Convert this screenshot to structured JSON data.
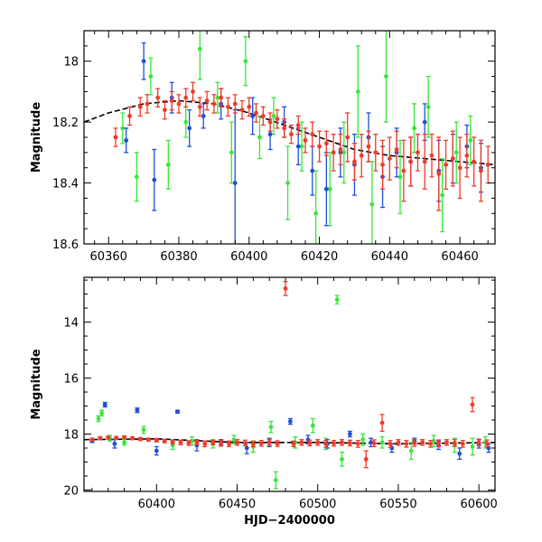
{
  "chart_data": [
    {
      "type": "scatter",
      "title": "",
      "xlabel": "",
      "ylabel": "Magnitude",
      "xlim": [
        60353,
        60470
      ],
      "ylim": [
        18.6,
        17.9
      ],
      "y_inverted": true,
      "xticks": [
        60360,
        60380,
        60400,
        60420,
        60440,
        60460
      ],
      "yticks": [
        18,
        18.2,
        18.4,
        18.6
      ],
      "xtick_labels": [
        "60360",
        "60380",
        "60400",
        "60420",
        "60440",
        "60460"
      ],
      "ytick_labels": [
        "18",
        "18.2",
        "18.4",
        "18.6"
      ],
      "grid": false,
      "colors": {
        "g": "#39e639",
        "b": "#1f4fd8",
        "r": "#ee3b2a",
        "model": "#000000"
      },
      "model_curve": {
        "style": "dashed",
        "x": [
          60353,
          60360,
          60370,
          60380,
          60390,
          60400,
          60410,
          60420,
          60430,
          60440,
          60450,
          60460,
          60470
        ],
        "y": [
          18.2,
          18.17,
          18.14,
          18.13,
          18.14,
          18.17,
          18.21,
          18.25,
          18.29,
          18.31,
          18.32,
          18.33,
          18.34
        ]
      },
      "series": [
        {
          "color": "g",
          "x": [
            60364,
            60368,
            60372,
            60377,
            60382,
            60386,
            60391,
            60395,
            60399,
            60403,
            60407,
            60411,
            60415,
            60419,
            60423,
            60427,
            60431,
            60435,
            60439,
            60443,
            60447,
            60451,
            60455,
            60459,
            60463
          ],
          "y": [
            18.22,
            18.38,
            18.05,
            18.34,
            18.2,
            17.96,
            18.12,
            18.3,
            18.0,
            18.25,
            18.18,
            18.4,
            18.28,
            18.5,
            18.42,
            18.3,
            18.1,
            18.47,
            18.05,
            18.38,
            18.22,
            18.15,
            18.44,
            18.3,
            18.26
          ],
          "err": [
            0.05,
            0.08,
            0.06,
            0.08,
            0.05,
            0.1,
            0.05,
            0.1,
            0.08,
            0.07,
            0.06,
            0.12,
            0.08,
            0.14,
            0.12,
            0.1,
            0.15,
            0.14,
            0.15,
            0.12,
            0.08,
            0.1,
            0.12,
            0.1,
            0.08
          ]
        },
        {
          "color": "b",
          "x": [
            60365,
            60370,
            60373,
            60378,
            60383,
            60387,
            60392,
            60396,
            60401,
            60406,
            60410,
            60414,
            60418,
            60422,
            60426,
            60430,
            60434,
            60438,
            60442,
            60446,
            60450,
            60454,
            60458,
            60462,
            60466
          ],
          "y": [
            18.26,
            18.0,
            18.39,
            18.12,
            18.22,
            18.18,
            18.14,
            18.4,
            18.18,
            18.24,
            18.2,
            18.28,
            18.36,
            18.42,
            18.3,
            18.34,
            18.25,
            18.38,
            18.3,
            18.33,
            18.2,
            18.36,
            18.32,
            18.28,
            18.35
          ],
          "err": [
            0.04,
            0.06,
            0.1,
            0.05,
            0.06,
            0.04,
            0.05,
            0.24,
            0.06,
            0.05,
            0.05,
            0.06,
            0.08,
            0.12,
            0.08,
            0.1,
            0.08,
            0.1,
            0.08,
            0.08,
            0.06,
            0.1,
            0.08,
            0.07,
            0.08
          ]
        },
        {
          "color": "r",
          "x": [
            60362,
            60366,
            60369,
            60371,
            60374,
            60376,
            60378,
            60380,
            60382,
            60384,
            60386,
            60388,
            60390,
            60392,
            60394,
            60396,
            60398,
            60400,
            60402,
            60404,
            60406,
            60408,
            60410,
            60412,
            60414,
            60416,
            60418,
            60420,
            60422,
            60424,
            60426,
            60428,
            60430,
            60432,
            60434,
            60436,
            60438,
            60440,
            60442,
            60444,
            60446,
            60448,
            60450,
            60452,
            60454,
            60456,
            60458,
            60460,
            60462,
            60464,
            60466,
            60468
          ],
          "y": [
            18.25,
            18.18,
            18.15,
            18.14,
            18.12,
            18.16,
            18.13,
            18.14,
            18.12,
            18.1,
            18.15,
            18.13,
            18.14,
            18.12,
            18.15,
            18.14,
            18.16,
            18.15,
            18.17,
            18.18,
            18.2,
            18.19,
            18.22,
            18.24,
            18.21,
            18.26,
            18.24,
            18.28,
            18.27,
            18.3,
            18.29,
            18.25,
            18.33,
            18.31,
            18.28,
            18.3,
            18.34,
            18.32,
            18.29,
            18.36,
            18.33,
            18.3,
            18.33,
            18.31,
            18.37,
            18.34,
            18.32,
            18.35,
            18.31,
            18.33,
            18.36,
            18.34
          ],
          "err": [
            0.03,
            0.03,
            0.03,
            0.03,
            0.03,
            0.03,
            0.03,
            0.03,
            0.03,
            0.03,
            0.03,
            0.03,
            0.03,
            0.03,
            0.03,
            0.03,
            0.03,
            0.03,
            0.03,
            0.03,
            0.03,
            0.03,
            0.03,
            0.03,
            0.03,
            0.04,
            0.04,
            0.05,
            0.04,
            0.06,
            0.05,
            0.08,
            0.06,
            0.07,
            0.05,
            0.06,
            0.08,
            0.07,
            0.06,
            0.1,
            0.08,
            0.06,
            0.09,
            0.07,
            0.12,
            0.08,
            0.09,
            0.1,
            0.07,
            0.08,
            0.1,
            0.06
          ]
        }
      ]
    },
    {
      "type": "scatter",
      "title": "",
      "xlabel": "HJD−2400000",
      "ylabel": "Magnitude",
      "xlim": [
        60355,
        60610
      ],
      "ylim": [
        20.05,
        12.4
      ],
      "y_inverted": true,
      "xticks": [
        60400,
        60450,
        60500,
        60550,
        60600
      ],
      "yticks": [
        14,
        16,
        18,
        20
      ],
      "xtick_labels": [
        "60400",
        "60450",
        "60500",
        "60550",
        "60600"
      ],
      "ytick_labels": [
        "14",
        "16",
        "18",
        "20"
      ],
      "grid": false,
      "colors": {
        "g": "#39e639",
        "b": "#1f4fd8",
        "r": "#ee3b2a",
        "model": "#000000"
      },
      "model_curve": {
        "style": "dashed",
        "x": [
          60355,
          60400,
          60450,
          60500,
          60550,
          60610
        ],
        "y": [
          18.2,
          18.17,
          18.3,
          18.3,
          18.35,
          18.3
        ]
      },
      "series": [
        {
          "color": "g",
          "x": [
            60364,
            60366,
            60371,
            60380,
            60392,
            60410,
            60422,
            60435,
            60448,
            60460,
            60471,
            60474,
            60486,
            60497,
            60505,
            60512,
            60515,
            60528,
            60540,
            60558,
            60572,
            60585,
            60596,
            60604
          ],
          "y": [
            17.45,
            17.25,
            18.15,
            18.3,
            17.85,
            18.4,
            18.25,
            18.35,
            18.2,
            18.45,
            17.75,
            19.65,
            18.3,
            17.7,
            18.35,
            13.2,
            18.9,
            18.2,
            18.3,
            18.6,
            18.25,
            18.4,
            18.45,
            18.3
          ],
          "err": [
            0.1,
            0.1,
            0.1,
            0.1,
            0.12,
            0.15,
            0.15,
            0.15,
            0.15,
            0.2,
            0.2,
            0.3,
            0.2,
            0.25,
            0.2,
            0.15,
            0.25,
            0.2,
            0.2,
            0.3,
            0.2,
            0.25,
            0.3,
            0.2
          ]
        },
        {
          "color": "b",
          "x": [
            60360,
            60368,
            60374,
            60388,
            60400,
            60413,
            60425,
            60440,
            60456,
            60470,
            60483,
            60494,
            60506,
            60520,
            60533,
            60546,
            60560,
            60575,
            60588,
            60600,
            60606
          ],
          "y": [
            18.25,
            16.95,
            18.35,
            17.15,
            18.6,
            17.2,
            18.4,
            18.3,
            18.5,
            18.3,
            17.55,
            18.2,
            18.35,
            18.0,
            18.3,
            18.5,
            18.25,
            18.4,
            18.7,
            18.35,
            18.5
          ],
          "err": [
            0.05,
            0.08,
            0.15,
            0.08,
            0.15,
            0.05,
            0.2,
            0.1,
            0.2,
            0.15,
            0.1,
            0.15,
            0.15,
            0.1,
            0.15,
            0.15,
            0.1,
            0.15,
            0.2,
            0.15,
            0.15
          ]
        },
        {
          "color": "r",
          "x": [
            60360,
            60365,
            60370,
            60375,
            60380,
            60385,
            60390,
            60395,
            60400,
            60405,
            60410,
            60415,
            60420,
            60425,
            60430,
            60435,
            60440,
            60445,
            60450,
            60455,
            60460,
            60465,
            60470,
            60475,
            60480,
            60485,
            60490,
            60495,
            60500,
            60505,
            60510,
            60515,
            60520,
            60525,
            60530,
            60535,
            60540,
            60545,
            60550,
            60555,
            60560,
            60565,
            60570,
            60575,
            60580,
            60585,
            60590,
            60596,
            60600,
            60605
          ],
          "y": [
            18.2,
            18.15,
            18.13,
            18.14,
            18.12,
            18.15,
            18.18,
            18.2,
            18.22,
            18.25,
            18.28,
            18.3,
            18.32,
            18.3,
            18.35,
            18.3,
            18.33,
            18.35,
            18.3,
            18.32,
            18.35,
            18.33,
            18.3,
            18.34,
            12.8,
            18.35,
            18.3,
            18.32,
            18.3,
            18.35,
            18.33,
            18.3,
            18.32,
            18.35,
            18.9,
            18.33,
            17.6,
            18.35,
            18.3,
            18.35,
            18.32,
            18.3,
            18.35,
            18.33,
            18.3,
            18.32,
            18.35,
            16.95,
            18.3,
            18.33
          ],
          "err": [
            0.05,
            0.05,
            0.05,
            0.05,
            0.05,
            0.05,
            0.05,
            0.05,
            0.06,
            0.06,
            0.07,
            0.08,
            0.08,
            0.08,
            0.1,
            0.08,
            0.1,
            0.1,
            0.1,
            0.1,
            0.1,
            0.1,
            0.1,
            0.1,
            0.25,
            0.1,
            0.1,
            0.1,
            0.1,
            0.12,
            0.1,
            0.1,
            0.1,
            0.12,
            0.3,
            0.12,
            0.3,
            0.12,
            0.1,
            0.12,
            0.12,
            0.1,
            0.12,
            0.12,
            0.1,
            0.12,
            0.12,
            0.25,
            0.12,
            0.12
          ]
        }
      ]
    }
  ]
}
